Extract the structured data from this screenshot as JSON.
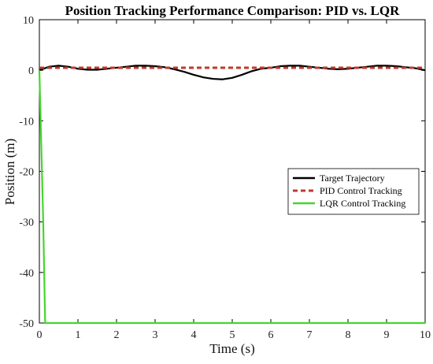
{
  "chart_data": {
    "type": "line",
    "title": "Position Tracking Performance Comparison: PID vs. LQR",
    "xlabel": "Time (s)",
    "ylabel": "Position (m)",
    "xlim": [
      0,
      10
    ],
    "ylim": [
      -50,
      10
    ],
    "xticks": [
      "0",
      "1",
      "2",
      "3",
      "4",
      "5",
      "6",
      "7",
      "8",
      "9",
      "10"
    ],
    "yticks": [
      "10",
      "0",
      "-10",
      "-20",
      "-30",
      "-40",
      "-50"
    ],
    "grid": false,
    "legend_position": "center-right",
    "series": [
      {
        "name": "Target Trajectory",
        "color": "#000000",
        "style": "solid",
        "x": [
          0,
          0.25,
          0.5,
          0.75,
          1,
          1.25,
          1.5,
          1.75,
          2,
          2.25,
          2.5,
          2.75,
          3,
          3.25,
          3.5,
          3.75,
          4,
          4.25,
          4.5,
          4.75,
          5,
          5.25,
          5.5,
          5.75,
          6,
          6.25,
          6.5,
          6.75,
          7,
          7.25,
          7.5,
          7.75,
          8,
          8.25,
          8.5,
          8.75,
          9,
          9.25,
          9.5,
          9.75,
          10
        ],
        "y": [
          0,
          0.7,
          0.9,
          0.7,
          0.3,
          0.1,
          0.1,
          0.3,
          0.5,
          0.7,
          0.9,
          0.9,
          0.8,
          0.6,
          0.2,
          -0.3,
          -0.9,
          -1.4,
          -1.7,
          -1.8,
          -1.5,
          -0.9,
          -0.2,
          0.3,
          0.5,
          0.8,
          0.9,
          0.9,
          0.7,
          0.5,
          0.3,
          0.2,
          0.3,
          0.5,
          0.7,
          0.9,
          0.9,
          0.8,
          0.6,
          0.4,
          0
        ]
      },
      {
        "name": "PID Control Tracking",
        "color": "#c0392b",
        "style": "dashed",
        "x": [
          0,
          0.25,
          0.5,
          0.75,
          1,
          1.25,
          1.5,
          1.75,
          2,
          2.25,
          2.5,
          2.75,
          3,
          3.25,
          3.5,
          3.75,
          4,
          4.25,
          4.5,
          4.75,
          5,
          5.25,
          5.5,
          5.75,
          6,
          6.25,
          6.5,
          6.75,
          7,
          7.25,
          7.5,
          7.75,
          8,
          8.25,
          8.5,
          8.75,
          9,
          9.25,
          9.5,
          9.75,
          10
        ],
        "y": [
          0.5,
          0.5,
          0.5,
          0.5,
          0.5,
          0.5,
          0.5,
          0.5,
          0.5,
          0.5,
          0.5,
          0.5,
          0.5,
          0.5,
          0.5,
          0.5,
          0.5,
          0.5,
          0.5,
          0.5,
          0.5,
          0.5,
          0.5,
          0.5,
          0.5,
          0.5,
          0.5,
          0.5,
          0.5,
          0.5,
          0.5,
          0.5,
          0.5,
          0.5,
          0.5,
          0.5,
          0.5,
          0.5,
          0.5,
          0.5,
          0.5
        ]
      },
      {
        "name": "LQR Control Tracking",
        "color": "#44d62c",
        "style": "solid",
        "x": [
          0,
          0.05,
          0.1,
          0.15,
          10
        ],
        "y": [
          0,
          -15,
          -30,
          -50,
          -50
        ]
      }
    ]
  }
}
